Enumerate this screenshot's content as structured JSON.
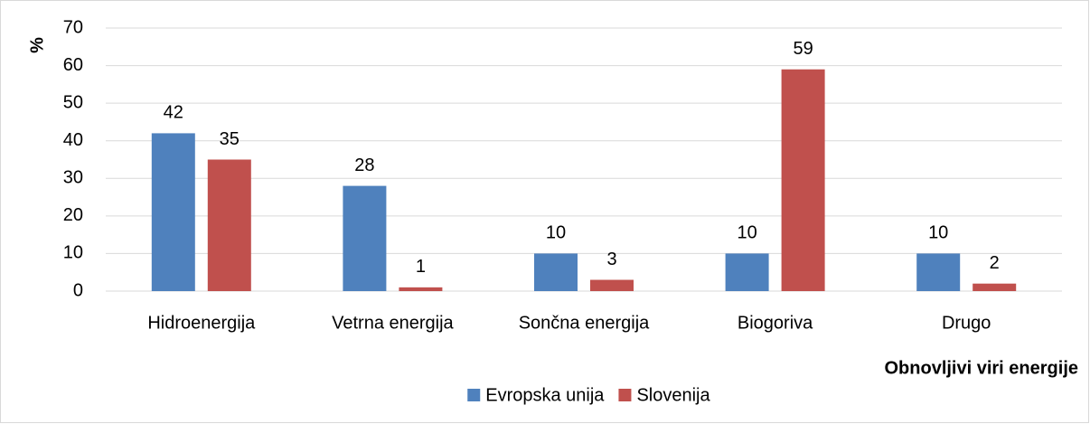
{
  "chart_data": {
    "type": "bar",
    "y_label": "%",
    "x_label": "Obnovljivi viri energije",
    "categories": [
      "Hidroenergija",
      "Vetrna energija",
      "Sončna energija",
      "Biogoriva",
      "Drugo"
    ],
    "series": [
      {
        "name": "Evropska unija",
        "color": "#4f81bd",
        "values": [
          42,
          28,
          10,
          10,
          10
        ]
      },
      {
        "name": "Slovenija",
        "color": "#c0504d",
        "values": [
          35,
          1,
          3,
          59,
          2
        ]
      }
    ],
    "ylim": [
      0,
      70
    ],
    "yticks": [
      0,
      10,
      20,
      30,
      40,
      50,
      60,
      70
    ],
    "grid": true,
    "legend": "bottom"
  }
}
